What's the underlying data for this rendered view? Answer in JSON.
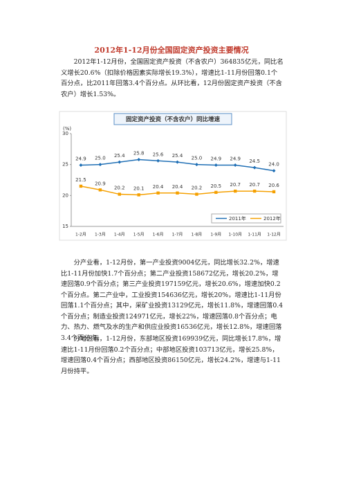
{
  "title": "2012年1-12月份全国固定资产投资主要情况",
  "paragraphs": [
    "2012年1-12月份，全国固定资产投资（不含农户）364835亿元，同比名义增长20.6%（扣除价格因素实际增长19.3%），增速比1-11月份回落0.1个百分点，比2011年回落3.4个百分点。从环比看，12月份固定资产投资（不含农户）增长1.53%。",
    "分产业看，1-12月份，第一产业投资9004亿元，同比增长32.2%，增速比1-11月份加快1.7个百分点；第二产业投资158672亿元，增长20.2%，增速回落0.9个百分点；第三产业投资197159亿元，增长20.6%，增速加快0.2个百分点。第二产业中，工业投资154636亿元，增长20%，增速比1-11月份回落1.1个百分点；其中，采矿业投资13129亿元，增长11.8%，增速回落0.4个百分点；制造业投资124971亿元，增长22%，增速回落0.8个百分点；电力、热力、燃气及水的生产和供应业投资16536亿元，增长12.8%，增速回落3.4个百分点。",
    "分地区看，1-12月份，东部地区投资169939亿元，同比增长17.8%，增速比1-11月份回落0.2个百分点；中部地区投资103713亿元，增长25.8%，增速回落0.4个百分点；西部地区投资86150亿元，增长24.2%，增速与1-11月份持平。"
  ],
  "chart_data": {
    "type": "line",
    "title": "固定资产投资（不含农户）同比增速",
    "y_unit": "(%)",
    "categories": [
      "1-2月",
      "1-3月",
      "1-4月",
      "1-5月",
      "1-6月",
      "1-7月",
      "1-8月",
      "1-9月",
      "1-10月",
      "1-11月",
      "1-12月"
    ],
    "series": [
      {
        "name": "2011年",
        "color": "#1f6fb5",
        "values": [
          24.9,
          25.0,
          25.4,
          25.8,
          25.6,
          25.4,
          25.0,
          24.9,
          24.9,
          24.5,
          24.0
        ],
        "value_labels": [
          "24.9",
          "25.0",
          "25.4",
          "25.8",
          "25.6",
          "25.4",
          "25.0",
          "24.9",
          "24.9",
          "24.5",
          "24.0"
        ]
      },
      {
        "name": "2012年",
        "color": "#f5a000",
        "values": [
          21.5,
          20.9,
          20.2,
          20.1,
          20.4,
          20.4,
          20.2,
          20.5,
          20.7,
          20.7,
          20.6
        ],
        "value_labels": [
          "21.5",
          "20.9",
          "20.2",
          "20.1",
          "20.4",
          "20.4",
          "20.2",
          "20.5",
          "20.7",
          "20.7",
          "20.6"
        ]
      }
    ],
    "ylim": [
      15,
      30
    ],
    "yticks": [
      15,
      20,
      25,
      30
    ],
    "grid": false,
    "legend": "lower right"
  }
}
